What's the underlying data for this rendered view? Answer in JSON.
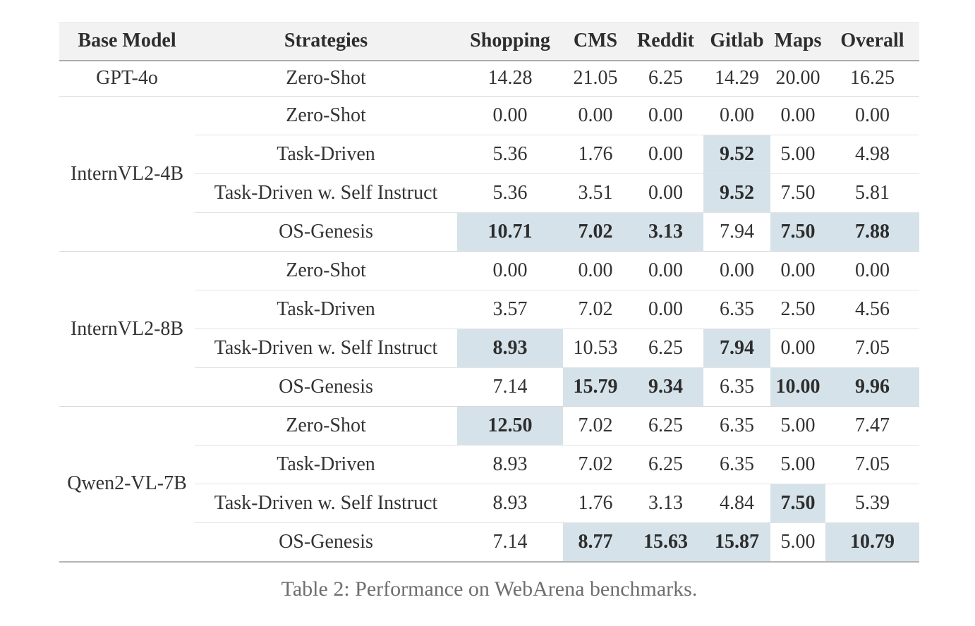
{
  "table": {
    "columns": [
      "Base Model",
      "Strategies",
      "Shopping",
      "CMS",
      "Reddit",
      "Gitlab",
      "Maps",
      "Overall"
    ],
    "highlight_color": "#d5e2e9",
    "header_background": "#f2f2f2",
    "groups": [
      {
        "model": "GPT-4o",
        "rows": [
          {
            "strategy": "Zero-Shot",
            "values": [
              "14.28",
              "21.05",
              "6.25",
              "14.29",
              "20.00",
              "16.25"
            ],
            "highlight": [
              0,
              0,
              0,
              0,
              0,
              0
            ]
          }
        ]
      },
      {
        "model": "InternVL2-4B",
        "rows": [
          {
            "strategy": "Zero-Shot",
            "values": [
              "0.00",
              "0.00",
              "0.00",
              "0.00",
              "0.00",
              "0.00"
            ],
            "highlight": [
              0,
              0,
              0,
              0,
              0,
              0
            ]
          },
          {
            "strategy": "Task-Driven",
            "values": [
              "5.36",
              "1.76",
              "0.00",
              "9.52",
              "5.00",
              "4.98"
            ],
            "highlight": [
              0,
              0,
              0,
              1,
              0,
              0
            ]
          },
          {
            "strategy": "Task-Driven w. Self Instruct",
            "values": [
              "5.36",
              "3.51",
              "0.00",
              "9.52",
              "7.50",
              "5.81"
            ],
            "highlight": [
              0,
              0,
              0,
              1,
              0,
              0
            ],
            "merge_top": [
              0,
              0,
              0,
              1,
              0,
              0
            ]
          },
          {
            "strategy": "OS-Genesis",
            "values": [
              "10.71",
              "7.02",
              "3.13",
              "7.94",
              "7.50",
              "7.88"
            ],
            "highlight": [
              1,
              1,
              1,
              0,
              1,
              1
            ]
          }
        ]
      },
      {
        "model": "InternVL2-8B",
        "rows": [
          {
            "strategy": "Zero-Shot",
            "values": [
              "0.00",
              "0.00",
              "0.00",
              "0.00",
              "0.00",
              "0.00"
            ],
            "highlight": [
              0,
              0,
              0,
              0,
              0,
              0
            ]
          },
          {
            "strategy": "Task-Driven",
            "values": [
              "3.57",
              "7.02",
              "0.00",
              "6.35",
              "2.50",
              "4.56"
            ],
            "highlight": [
              0,
              0,
              0,
              0,
              0,
              0
            ]
          },
          {
            "strategy": "Task-Driven w. Self Instruct",
            "values": [
              "8.93",
              "10.53",
              "6.25",
              "7.94",
              "0.00",
              "7.05"
            ],
            "highlight": [
              1,
              0,
              0,
              1,
              0,
              0
            ]
          },
          {
            "strategy": "OS-Genesis",
            "values": [
              "7.14",
              "15.79",
              "9.34",
              "6.35",
              "10.00",
              "9.96"
            ],
            "highlight": [
              0,
              1,
              1,
              0,
              1,
              1
            ]
          }
        ]
      },
      {
        "model": "Qwen2-VL-7B",
        "rows": [
          {
            "strategy": "Zero-Shot",
            "values": [
              "12.50",
              "7.02",
              "6.25",
              "6.35",
              "5.00",
              "7.47"
            ],
            "highlight": [
              1,
              0,
              0,
              0,
              0,
              0
            ]
          },
          {
            "strategy": "Task-Driven",
            "values": [
              "8.93",
              "7.02",
              "6.25",
              "6.35",
              "5.00",
              "7.05"
            ],
            "highlight": [
              0,
              0,
              0,
              0,
              0,
              0
            ]
          },
          {
            "strategy": "Task-Driven w. Self Instruct",
            "values": [
              "8.93",
              "1.76",
              "3.13",
              "4.84",
              "7.50",
              "5.39"
            ],
            "highlight": [
              0,
              0,
              0,
              0,
              1,
              0
            ]
          },
          {
            "strategy": "OS-Genesis",
            "values": [
              "7.14",
              "8.77",
              "15.63",
              "15.87",
              "5.00",
              "10.79"
            ],
            "highlight": [
              0,
              1,
              1,
              1,
              0,
              1
            ]
          }
        ]
      }
    ]
  },
  "caption": "Table 2: Performance on WebArena benchmarks."
}
